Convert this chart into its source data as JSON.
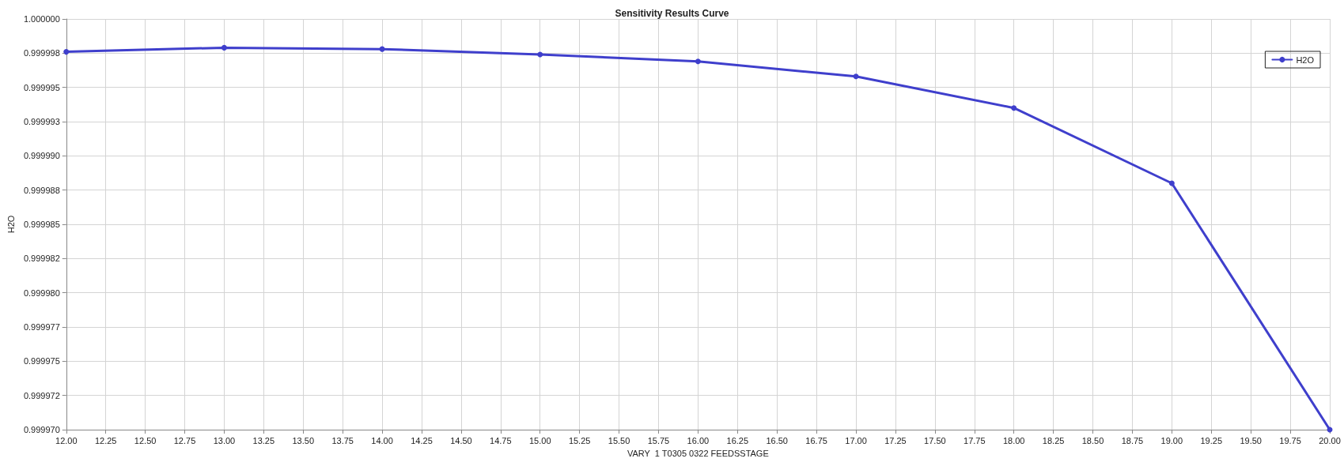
{
  "chart_data": {
    "type": "line",
    "title": "Sensitivity Results Curve",
    "xlabel": "VARY  1 T0305 0322 FEEDSSTAGE",
    "ylabel": "H2O",
    "x": [
      12,
      13,
      14,
      15,
      16,
      17,
      18,
      19,
      20
    ],
    "series": [
      {
        "name": "H2O",
        "color": "#3f3fcc",
        "values": [
          0.9999976,
          0.9999979,
          0.9999978,
          0.9999974,
          0.9999969,
          0.9999958,
          0.9999935,
          0.999988,
          0.99997
        ]
      }
    ],
    "xlim": [
      12,
      20
    ],
    "xticks": [
      {
        "value": 12,
        "label": "12.00"
      },
      {
        "value": 12.25,
        "label": "12.25"
      },
      {
        "value": 12.5,
        "label": "12.50"
      },
      {
        "value": 12.75,
        "label": "12.75"
      },
      {
        "value": 13,
        "label": "13.00"
      },
      {
        "value": 13.25,
        "label": "13.25"
      },
      {
        "value": 13.5,
        "label": "13.50"
      },
      {
        "value": 13.75,
        "label": "13.75"
      },
      {
        "value": 14,
        "label": "14.00"
      },
      {
        "value": 14.25,
        "label": "14.25"
      },
      {
        "value": 14.5,
        "label": "14.50"
      },
      {
        "value": 14.75,
        "label": "14.75"
      },
      {
        "value": 15,
        "label": "15.00"
      },
      {
        "value": 15.25,
        "label": "15.25"
      },
      {
        "value": 15.5,
        "label": "15.50"
      },
      {
        "value": 15.75,
        "label": "15.75"
      },
      {
        "value": 16,
        "label": "16.00"
      },
      {
        "value": 16.25,
        "label": "16.25"
      },
      {
        "value": 16.5,
        "label": "16.50"
      },
      {
        "value": 16.75,
        "label": "16.75"
      },
      {
        "value": 17,
        "label": "17.00"
      },
      {
        "value": 17.25,
        "label": "17.25"
      },
      {
        "value": 17.5,
        "label": "17.50"
      },
      {
        "value": 17.75,
        "label": "17.75"
      },
      {
        "value": 18,
        "label": "18.00"
      },
      {
        "value": 18.25,
        "label": "18.25"
      },
      {
        "value": 18.5,
        "label": "18.50"
      },
      {
        "value": 18.75,
        "label": "18.75"
      },
      {
        "value": 19,
        "label": "19.00"
      },
      {
        "value": 19.25,
        "label": "19.25"
      },
      {
        "value": 19.5,
        "label": "19.50"
      },
      {
        "value": 19.75,
        "label": "19.75"
      },
      {
        "value": 20,
        "label": "20.00"
      }
    ],
    "ylim": [
      0.99997,
      1
    ],
    "yticks": [
      {
        "value": 0.99997,
        "label": "0.999970"
      },
      {
        "value": 0.9999725,
        "label": "0.999972"
      },
      {
        "value": 0.999975,
        "label": "0.999975"
      },
      {
        "value": 0.9999775,
        "label": "0.999977"
      },
      {
        "value": 0.99998,
        "label": "0.999980"
      },
      {
        "value": 0.9999825,
        "label": "0.999982"
      },
      {
        "value": 0.999985,
        "label": "0.999985"
      },
      {
        "value": 0.9999875,
        "label": "0.999988"
      },
      {
        "value": 0.99999,
        "label": "0.999990"
      },
      {
        "value": 0.9999925,
        "label": "0.999993"
      },
      {
        "value": 0.999995,
        "label": "0.999995"
      },
      {
        "value": 0.9999975,
        "label": "0.999998"
      },
      {
        "value": 1,
        "label": "1.000000"
      }
    ],
    "grid": true,
    "legend": "top right",
    "marker": "circle",
    "line_style": "solid"
  }
}
